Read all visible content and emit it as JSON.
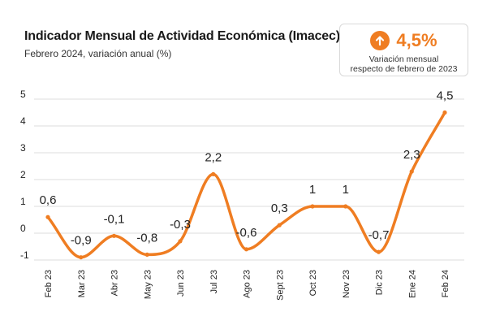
{
  "header": {
    "title": "Indicador Mensual de Actividad Económica (Imacec)",
    "subtitle": "Febrero 2024, variación anual (%)"
  },
  "kpi": {
    "value": "4,5%",
    "icon": "arrow-up-icon",
    "desc_line1": "Variación mensual",
    "desc_line2": "respecto de febrero de 2023"
  },
  "colors": {
    "accent": "#ef7d22",
    "grid": "#dddddd",
    "text": "#222222"
  },
  "chart_data": {
    "type": "line",
    "title": "Indicador Mensual de Actividad Económica (Imacec)",
    "subtitle": "Febrero 2024, variación anual (%)",
    "xlabel": "",
    "ylabel": "",
    "ylim": [
      -1,
      5
    ],
    "yticks": [
      -1,
      0,
      1,
      2,
      3,
      4,
      5
    ],
    "grid": true,
    "smooth": true,
    "categories": [
      "Feb 23",
      "Mar 23",
      "Abr 23",
      "May 23",
      "Jun 23",
      "Jul 23",
      "Ago 23",
      "Sept 23",
      "Oct 23",
      "Nov 23",
      "Dic 23",
      "Ene 24",
      "Feb 24"
    ],
    "series": [
      {
        "name": "Imacec",
        "values": [
          0.6,
          -0.9,
          -0.1,
          -0.8,
          -0.3,
          2.2,
          -0.6,
          0.3,
          1,
          1,
          -0.7,
          2.3,
          4.5
        ],
        "labels": [
          "0,6",
          "-0,9",
          "-0,1",
          "-0,8",
          "-0,3",
          "2,2",
          "-0,6",
          "0,3",
          "1",
          "1",
          "-0,7",
          "2,3",
          "4,5"
        ]
      }
    ]
  }
}
